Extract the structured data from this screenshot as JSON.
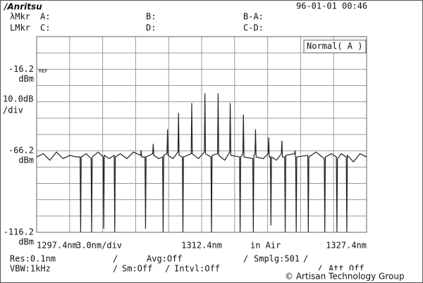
{
  "header": {
    "logo": "/Anritsu",
    "datetime": "96-01-01 00:46"
  },
  "markers": {
    "wl_marker": "λMkr",
    "a": "A:",
    "b": "B:",
    "b_minus_a": "B-A:",
    "level_marker": "LMkr",
    "c": "C:",
    "d": "D:",
    "c_minus_d": "C-D:"
  },
  "chart_data": {
    "type": "line",
    "mode_label": "Normal( A )",
    "ref_label": "REF",
    "y_scale": "10.0dB",
    "y_scale_unit": "/div",
    "y_unit": "dBm",
    "span_label": "3.0nm/div",
    "medium": "in Air",
    "xlim": [
      1297.4,
      1327.4
    ],
    "ylim": [
      -116.2,
      3.8
    ],
    "xticks": [
      {
        "value": 1297.4,
        "label": "1297.4nm"
      },
      {
        "value": 1312.4,
        "label": "1312.4nm"
      },
      {
        "value": 1327.4,
        "label": "1327.4nm"
      }
    ],
    "yticks": [
      -16.2,
      -66.2,
      -116.2
    ],
    "xgrid": [
      1297.4,
      1300.4,
      1303.4,
      1306.4,
      1309.4,
      1312.4,
      1315.4,
      1318.4,
      1321.4,
      1324.4,
      1327.4
    ],
    "ygrid": [
      -116.2,
      -106.2,
      -96.2,
      -86.2,
      -76.2,
      -66.2,
      -56.2,
      -46.2,
      -36.2,
      -26.2,
      -16.2,
      -6.2,
      3.8
    ],
    "color": "#222222",
    "x": [
      1297.4,
      1298.0,
      1298.6,
      1299.2,
      1299.8,
      1300.4,
      1301.0,
      1301.35,
      1301.4,
      1301.45,
      1301.9,
      1302.35,
      1302.4,
      1302.45,
      1303.0,
      1303.45,
      1303.5,
      1303.55,
      1304.0,
      1304.45,
      1304.5,
      1304.55,
      1305.0,
      1305.6,
      1306.2,
      1306.85,
      1306.9,
      1306.95,
      1307.25,
      1307.3,
      1307.35,
      1307.95,
      1308.0,
      1308.05,
      1308.5,
      1308.85,
      1308.9,
      1308.95,
      1309.25,
      1309.3,
      1309.35,
      1309.8,
      1310.25,
      1310.3,
      1310.35,
      1310.65,
      1310.7,
      1310.75,
      1311.45,
      1311.5,
      1311.55,
      1312.1,
      1312.65,
      1312.7,
      1312.75,
      1313.25,
      1313.3,
      1313.35,
      1313.85,
      1313.9,
      1313.95,
      1314.5,
      1314.95,
      1315.0,
      1315.05,
      1315.85,
      1315.9,
      1315.95,
      1316.15,
      1316.2,
      1316.25,
      1317.05,
      1317.1,
      1317.15,
      1317.25,
      1317.3,
      1317.35,
      1318.0,
      1318.45,
      1318.5,
      1318.55,
      1318.65,
      1318.7,
      1318.75,
      1319.2,
      1319.65,
      1319.7,
      1319.75,
      1319.95,
      1320.0,
      1320.05,
      1320.85,
      1320.9,
      1320.95,
      1321.0,
      1321.05,
      1322.05,
      1322.1,
      1322.15,
      1322.8,
      1323.55,
      1323.6,
      1323.65,
      1324.2,
      1324.65,
      1324.7,
      1324.75,
      1325.1,
      1325.55,
      1325.6,
      1325.65,
      1326.2,
      1326.8,
      1327.4
    ],
    "values": [
      -70,
      -68,
      -72,
      -67,
      -71,
      -69,
      -70,
      -70,
      -116,
      -70,
      -68,
      -71,
      -116,
      -70,
      -67,
      -70,
      -114,
      -69,
      -71,
      -69,
      -116,
      -70,
      -68,
      -71,
      -67,
      -69,
      -66,
      -70,
      -70,
      -114,
      -70,
      -68,
      -62,
      -69,
      -71,
      -70,
      -116,
      -69,
      -68,
      -53,
      -69,
      -71,
      -67,
      -43,
      -69,
      -70,
      -116,
      -70,
      -68,
      -37,
      -68,
      -71,
      -67,
      -31,
      -68,
      -70,
      -116,
      -69,
      -68,
      -31,
      -69,
      -72,
      -67,
      -37,
      -69,
      -70,
      -116,
      -70,
      -68,
      -44,
      -70,
      -71,
      -116,
      -69,
      -68,
      -53,
      -70,
      -71,
      -68,
      -58,
      -70,
      -70,
      -112,
      -70,
      -72,
      -68,
      -60,
      -70,
      -70,
      -116,
      -69,
      -68,
      -66,
      -71,
      -116,
      -70,
      -69,
      -116,
      -70,
      -67,
      -71,
      -116,
      -70,
      -68,
      -70,
      -116,
      -71,
      -68,
      -70,
      -116,
      -69,
      -73,
      -68,
      -70
    ]
  },
  "settings": {
    "res": "Res:0.1nm",
    "avg": "Avg:Off",
    "smplg": "Smplg:501",
    "vbw": "VBW:1kHz",
    "sm": "Sm:Off",
    "intvl": "Intvl:Off",
    "att": "Att Off"
  },
  "watermark": "© Artisan Technology Group"
}
